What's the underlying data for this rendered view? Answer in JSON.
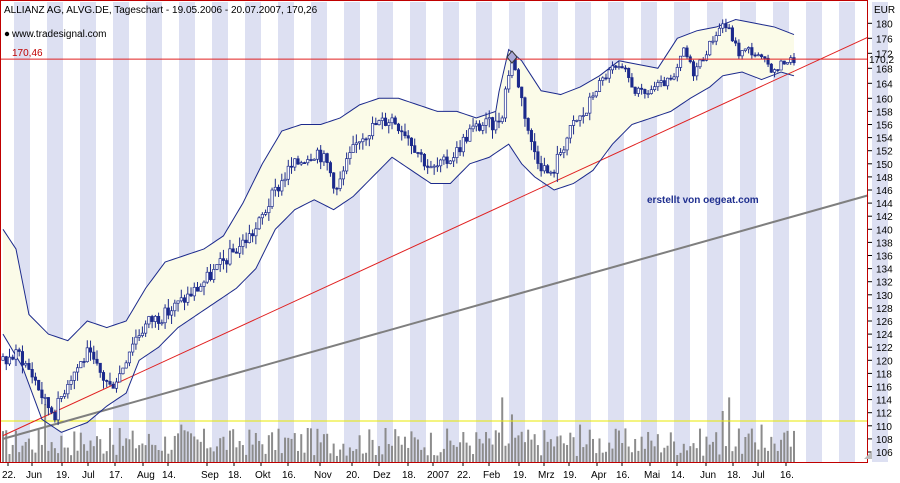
{
  "title": "ALLIANZ AG, ALVG.DE, Tageschart - 19.05.2006 - 20.07.2007, 170,26",
  "watermark": "www.tradesignal.com",
  "credit": "erstellt von oegeat.com",
  "currency_label": "EUR",
  "hline": {
    "value": 170.46,
    "label": "170,46",
    "right_label": "170,2"
  },
  "colors": {
    "border": "#c00000",
    "stripe": "#dde0f2",
    "band_fill": "#fbfbe8",
    "band_line": "#1c2a8c",
    "candle": "#1c2a8c",
    "candle_hollow": "#ffffff",
    "trend_red": "#e02020",
    "trend_gray": "#7f7f7f",
    "volume": "#8c8c8c",
    "vol_line": "#e8e800",
    "marker": "#a9a9d8"
  },
  "chart_data": {
    "type": "candlestick",
    "title": "ALLIANZ AG, ALVG.DE, Tageschart - 19.05.2006 - 20.07.2007, 170,26",
    "ylabel": "EUR",
    "ylim": [
      104.5,
      182
    ],
    "y_ticks": [
      106,
      108,
      110,
      112,
      114,
      116,
      118,
      120,
      122,
      124,
      126,
      128,
      130,
      132,
      134,
      136,
      138,
      140,
      142,
      144,
      146,
      148,
      150,
      152,
      154,
      156,
      158,
      160,
      164,
      168,
      172,
      176,
      180
    ],
    "y_tick_labels": [
      "106",
      "108",
      "110",
      "112",
      "114",
      "116",
      "118",
      "120",
      "122",
      "124",
      "126",
      "128",
      "130",
      "132",
      "134",
      "136",
      "138",
      "140",
      "142",
      "144",
      "146",
      "148",
      "150",
      "152",
      "154",
      "156",
      "158",
      "160",
      "164",
      "168",
      "172",
      "176",
      "180"
    ],
    "x_ticks": [
      "22.",
      "Jun",
      "19.",
      "Jul",
      "17.",
      "Aug",
      "14.",
      "Sep",
      "18.",
      "Okt",
      "16.",
      "Nov",
      "20.",
      "Dez",
      "18.",
      "2007",
      "22.",
      "Feb",
      "19.",
      "Mrz",
      "19.",
      "Apr",
      "16.",
      "Mai",
      "14.",
      "Jun",
      "18.",
      "Jul",
      "16."
    ],
    "date_range": [
      "19.05.2006",
      "20.07.2007"
    ],
    "last_close": 170.26,
    "anchors": [
      [
        0,
        120
      ],
      [
        5,
        121
      ],
      [
        10,
        117
      ],
      [
        13,
        113.5
      ],
      [
        16,
        112
      ],
      [
        20,
        117
      ],
      [
        26,
        121
      ],
      [
        30,
        118
      ],
      [
        33,
        116
      ],
      [
        36,
        118
      ],
      [
        40,
        123
      ],
      [
        45,
        126
      ],
      [
        50,
        127
      ],
      [
        55,
        129
      ],
      [
        60,
        131
      ],
      [
        66,
        134
      ],
      [
        70,
        136
      ],
      [
        74,
        138
      ],
      [
        78,
        140
      ],
      [
        83,
        145
      ],
      [
        88,
        149
      ],
      [
        93,
        151
      ],
      [
        97,
        152
      ],
      [
        100,
        150
      ],
      [
        103,
        146
      ],
      [
        106,
        150
      ],
      [
        110,
        154
      ],
      [
        115,
        156
      ],
      [
        120,
        157
      ],
      [
        124,
        155
      ],
      [
        128,
        152
      ],
      [
        132,
        149
      ],
      [
        136,
        150
      ],
      [
        140,
        152
      ],
      [
        144,
        155
      ],
      [
        148,
        156
      ],
      [
        152,
        156
      ],
      [
        154,
        158
      ],
      [
        157,
        171
      ],
      [
        160,
        160
      ],
      [
        163,
        153
      ],
      [
        166,
        150
      ],
      [
        169,
        148
      ],
      [
        172,
        152
      ],
      [
        176,
        156
      ],
      [
        180,
        158
      ],
      [
        184,
        164
      ],
      [
        188,
        168
      ],
      [
        192,
        167
      ],
      [
        195,
        162
      ],
      [
        198,
        161
      ],
      [
        201,
        163
      ],
      [
        204,
        164
      ],
      [
        207,
        165
      ],
      [
        210,
        173
      ],
      [
        213,
        167
      ],
      [
        216,
        171
      ],
      [
        219,
        176
      ],
      [
        222,
        180
      ],
      [
        224,
        178
      ],
      [
        227,
        172
      ],
      [
        230,
        173
      ],
      [
        233,
        171
      ],
      [
        236,
        169
      ],
      [
        238,
        167
      ],
      [
        241,
        170
      ],
      [
        244,
        170.26
      ]
    ],
    "lower_band_anchors": [
      [
        0,
        124
      ],
      [
        6,
        119
      ],
      [
        12,
        111
      ],
      [
        18,
        109
      ],
      [
        26,
        110.5
      ],
      [
        32,
        113
      ],
      [
        38,
        115
      ],
      [
        42,
        120
      ],
      [
        48,
        122
      ],
      [
        54,
        125
      ],
      [
        60,
        127
      ],
      [
        66,
        129
      ],
      [
        72,
        131
      ],
      [
        78,
        134
      ],
      [
        84,
        140
      ],
      [
        90,
        143
      ],
      [
        96,
        144.5
      ],
      [
        102,
        143
      ],
      [
        108,
        145
      ],
      [
        114,
        148
      ],
      [
        120,
        151
      ],
      [
        126,
        149
      ],
      [
        132,
        147
      ],
      [
        138,
        147
      ],
      [
        144,
        150
      ],
      [
        150,
        151
      ],
      [
        156,
        153
      ],
      [
        160,
        150
      ],
      [
        164,
        148
      ],
      [
        170,
        146
      ],
      [
        176,
        147
      ],
      [
        182,
        149
      ],
      [
        188,
        153
      ],
      [
        194,
        156
      ],
      [
        200,
        157
      ],
      [
        206,
        158
      ],
      [
        212,
        160
      ],
      [
        218,
        163
      ],
      [
        222,
        166
      ],
      [
        228,
        167
      ],
      [
        234,
        165
      ],
      [
        240,
        167
      ],
      [
        244,
        166
      ]
    ],
    "upper_band_anchors": [
      [
        0,
        140
      ],
      [
        4,
        137
      ],
      [
        8,
        127
      ],
      [
        14,
        124
      ],
      [
        20,
        123
      ],
      [
        26,
        126
      ],
      [
        32,
        125
      ],
      [
        38,
        126
      ],
      [
        44,
        131
      ],
      [
        50,
        135
      ],
      [
        56,
        136
      ],
      [
        62,
        137
      ],
      [
        68,
        139
      ],
      [
        74,
        144
      ],
      [
        80,
        150
      ],
      [
        86,
        155
      ],
      [
        92,
        156
      ],
      [
        98,
        156
      ],
      [
        104,
        157
      ],
      [
        110,
        159
      ],
      [
        116,
        160
      ],
      [
        122,
        160
      ],
      [
        128,
        159
      ],
      [
        134,
        158
      ],
      [
        140,
        158
      ],
      [
        146,
        157
      ],
      [
        152,
        158
      ],
      [
        156,
        173
      ],
      [
        160,
        170
      ],
      [
        166,
        162
      ],
      [
        172,
        161
      ],
      [
        178,
        163
      ],
      [
        184,
        166
      ],
      [
        190,
        170
      ],
      [
        196,
        169
      ],
      [
        202,
        168
      ],
      [
        208,
        176
      ],
      [
        214,
        178
      ],
      [
        220,
        179
      ],
      [
        226,
        181
      ],
      [
        232,
        180
      ],
      [
        238,
        179
      ],
      [
        244,
        177
      ]
    ],
    "red_trend": {
      "from": [
        0,
        108.5
      ],
      "to": [
        244,
        170.5
      ]
    },
    "gray_trend": {
      "from": [
        0,
        108
      ],
      "to": [
        244,
        142
      ]
    },
    "volume_spikes": [
      [
        13,
        0.85
      ],
      [
        33,
        0.5
      ],
      [
        55,
        0.55
      ],
      [
        94,
        0.5
      ],
      [
        118,
        0.5
      ],
      [
        154,
        0.95
      ],
      [
        157,
        0.7
      ],
      [
        178,
        0.55
      ],
      [
        224,
        0.95
      ],
      [
        222,
        0.75
      ],
      [
        234,
        0.55
      ]
    ]
  }
}
